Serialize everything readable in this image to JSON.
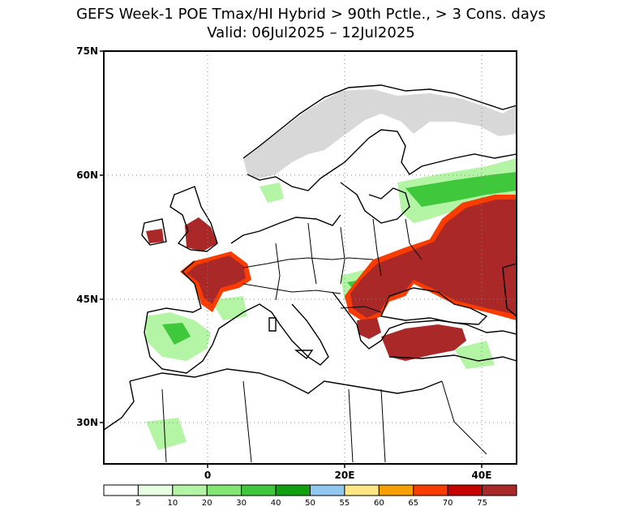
{
  "header": {
    "title": "GEFS Week-1 POE Tmax/HI Hybrid > 90th Pctle., > 3 Cons. days",
    "valid": "Valid: 06Jul2025 – 12Jul2025"
  },
  "map": {
    "lon_labels": [
      "0",
      "20E",
      "40E"
    ],
    "lat_labels": [
      "75N",
      "60N",
      "45N",
      "30N"
    ],
    "region": "Europe",
    "notes": "Highest probabilities (>75%) over France, British Isles (England), Balkans, Turkey and southern Russia/Ukraine"
  },
  "colorbar": {
    "labels": [
      "5",
      "10",
      "20",
      "30",
      "40",
      "50",
      "55",
      "60",
      "65",
      "70",
      "75"
    ],
    "colors": [
      "#ffffff",
      "#e5ffe0",
      "#b4f5a5",
      "#82e673",
      "#3fc83c",
      "#11a00e",
      "#90c8f0",
      "#fce784",
      "#f7a000",
      "#fa3c00",
      "#c80000",
      "#aa2828"
    ]
  },
  "colors": {
    "land_line": "#000000",
    "no_data": "#d8d8d8",
    "gridline": "#888888"
  }
}
